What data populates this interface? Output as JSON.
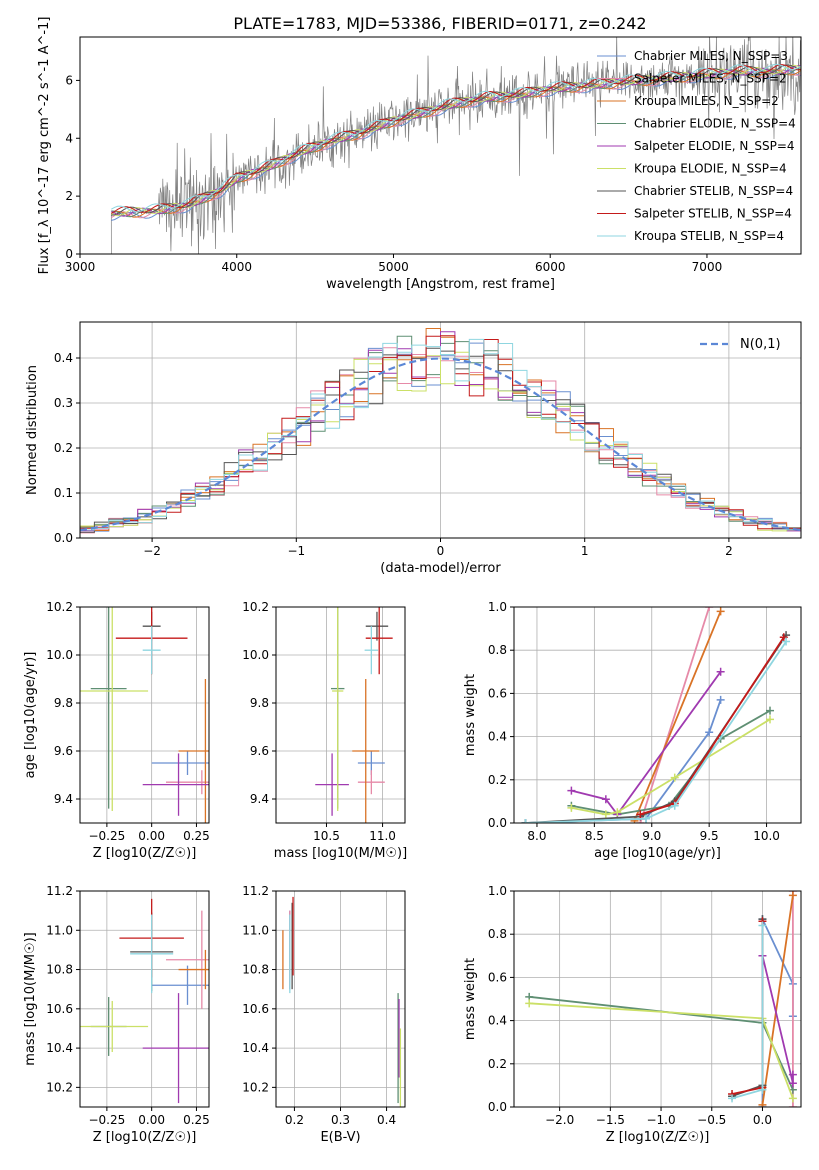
{
  "figure_title": "PLATE=1783, MJD=53386, FIBERID=0171, z=0.242",
  "models": [
    {
      "name": "Chabrier MILES, N_SSP=3",
      "color": "#6a8fd0"
    },
    {
      "name": "Salpeter MILES, N_SSP=2",
      "color": "#e68aa8"
    },
    {
      "name": "Kroupa MILES, N_SSP=2",
      "color": "#d97326"
    },
    {
      "name": "Chabrier ELODIE, N_SSP=4",
      "color": "#5f8f73"
    },
    {
      "name": "Salpeter ELODIE, N_SSP=4",
      "color": "#a03ab0"
    },
    {
      "name": "Kroupa ELODIE, N_SSP=4",
      "color": "#cbe067"
    },
    {
      "name": "Chabrier STELIB, N_SSP=4",
      "color": "#555555"
    },
    {
      "name": "Salpeter STELIB, N_SSP=4",
      "color": "#c41a1a"
    },
    {
      "name": "Kroupa STELIB, N_SSP=4",
      "color": "#8fd6e0"
    }
  ],
  "chart_data": [
    {
      "type": "line",
      "id": "spectrum",
      "title": "PLATE=1783, MJD=53386, FIBERID=0171, z=0.242",
      "xlabel": "wavelength [Angstrom, rest frame]",
      "ylabel": "Flux [f_λ 10^-17 erg cm^-2 s^-1 A^-1]",
      "xlim": [
        3000,
        7600
      ],
      "ylim": [
        0,
        7.5
      ],
      "xticks": [
        3000,
        4000,
        5000,
        6000,
        7000
      ],
      "yticks": [
        0,
        2,
        4,
        6
      ],
      "legend_position": "top-right",
      "data_color": "#808080",
      "model_continuum": {
        "x": [
          3200,
          3500,
          3700,
          3900,
          4000,
          4200,
          4400,
          4600,
          4800,
          5000,
          5200,
          5400,
          5600,
          5800,
          6000,
          6200,
          6400,
          6600,
          6800,
          7000,
          7200,
          7400,
          7600
        ],
        "y": [
          1.4,
          1.5,
          1.7,
          2.2,
          2.6,
          3.0,
          3.5,
          3.9,
          4.2,
          4.6,
          4.9,
          5.2,
          5.4,
          5.5,
          5.7,
          5.8,
          5.9,
          6.0,
          6.1,
          6.2,
          6.3,
          6.3,
          6.4
        ]
      }
    },
    {
      "type": "histogram",
      "id": "residuals",
      "xlabel": "(data-model)/error",
      "ylabel": "Normed distribution",
      "xlim": [
        -2.5,
        2.5
      ],
      "ylim": [
        0,
        0.48
      ],
      "xticks": [
        -2,
        -1,
        0,
        1,
        2
      ],
      "yticks": [
        0.0,
        0.1,
        0.2,
        0.3,
        0.4
      ],
      "legend": "N(0,1)",
      "legend_position": "top-right",
      "reference_curve": "normal pdf, mean 0, sd 1",
      "bin_width": 0.1
    },
    {
      "type": "errorbar",
      "id": "age_vs_Z",
      "xlabel": "Z [log10(Z/Z☉)]",
      "ylabel": "age [log10(age/yr)]",
      "xlim": [
        -0.4,
        0.32
      ],
      "ylim": [
        9.3,
        10.2
      ],
      "xticks": [
        -0.25,
        0.0,
        0.25
      ],
      "yticks": [
        9.4,
        9.6,
        9.8,
        10.0,
        10.2
      ],
      "points": [
        {
          "model": 0,
          "x": 0.2,
          "xerr": 0.2,
          "y": 9.55,
          "yerr": 0.05
        },
        {
          "model": 1,
          "x": 0.28,
          "xerr": 0.2,
          "y": 9.47,
          "yerr": 0.05
        },
        {
          "model": 2,
          "x": 0.3,
          "xerr": 0.15,
          "y": 9.6,
          "yerr": 0.3
        },
        {
          "model": 3,
          "x": -0.24,
          "xerr": 0.1,
          "y": 9.86,
          "yerr": 0.5
        },
        {
          "model": 4,
          "x": 0.15,
          "xerr": 0.2,
          "y": 9.46,
          "yerr": 0.13
        },
        {
          "model": 5,
          "x": -0.22,
          "xerr": 0.2,
          "y": 9.85,
          "yerr": 0.5
        },
        {
          "model": 6,
          "x": 0.0,
          "xerr": 0.05,
          "y": 10.12,
          "yerr": 0.06
        },
        {
          "model": 7,
          "x": 0.0,
          "xerr": 0.2,
          "y": 10.07,
          "yerr": 0.15
        },
        {
          "model": 8,
          "x": 0.0,
          "xerr": 0.05,
          "y": 10.02,
          "yerr": 0.1
        }
      ]
    },
    {
      "type": "errorbar",
      "id": "age_vs_mass",
      "xlabel": "mass [log10(M/M☉)]",
      "xlim": [
        10.05,
        11.2
      ],
      "ylim": [
        9.3,
        10.2
      ],
      "xticks": [
        10.5,
        11.0
      ],
      "yticks": [
        9.4,
        9.6,
        9.8,
        10.0,
        10.2
      ],
      "points": [
        {
          "model": 0,
          "x": 10.9,
          "xerr": 0.12,
          "y": 9.55,
          "yerr": 0.05
        },
        {
          "model": 1,
          "x": 10.9,
          "xerr": 0.12,
          "y": 9.47,
          "yerr": 0.05
        },
        {
          "model": 2,
          "x": 10.85,
          "xerr": 0.12,
          "y": 9.6,
          "yerr": 0.3
        },
        {
          "model": 3,
          "x": 10.6,
          "xerr": 0.06,
          "y": 9.86,
          "yerr": 0.5
        },
        {
          "model": 4,
          "x": 10.55,
          "xerr": 0.15,
          "y": 9.46,
          "yerr": 0.13
        },
        {
          "model": 5,
          "x": 10.6,
          "xerr": 0.05,
          "y": 9.85,
          "yerr": 0.5
        },
        {
          "model": 6,
          "x": 10.95,
          "xerr": 0.1,
          "y": 10.12,
          "yerr": 0.06
        },
        {
          "model": 7,
          "x": 10.97,
          "xerr": 0.12,
          "y": 10.07,
          "yerr": 0.15
        },
        {
          "model": 8,
          "x": 10.9,
          "xerr": 0.06,
          "y": 10.02,
          "yerr": 0.1
        }
      ]
    },
    {
      "type": "line",
      "id": "weight_vs_age",
      "xlabel": "age [log10(age/yr)]",
      "ylabel": "mass weight",
      "xlim": [
        7.8,
        10.3
      ],
      "ylim": [
        0,
        1.0
      ],
      "xticks": [
        8.0,
        8.5,
        9.0,
        9.5,
        10.0
      ],
      "yticks": [
        0.0,
        0.2,
        0.4,
        0.6,
        0.8,
        1.0
      ],
      "series": [
        {
          "model": 0,
          "x": [
            7.9,
            8.95,
            9.5,
            9.6
          ],
          "y": [
            0.0,
            0.02,
            0.42,
            0.57
          ]
        },
        {
          "model": 1,
          "x": [
            8.9,
            9.5
          ],
          "y": [
            0.0,
            1.0
          ]
        },
        {
          "model": 2,
          "x": [
            8.85,
            9.6
          ],
          "y": [
            0.01,
            0.98
          ]
        },
        {
          "model": 3,
          "x": [
            8.3,
            8.7,
            9.15,
            9.6,
            10.03
          ],
          "y": [
            0.08,
            0.04,
            0.08,
            0.39,
            0.52
          ]
        },
        {
          "model": 4,
          "x": [
            8.3,
            8.6,
            8.7,
            9.6
          ],
          "y": [
            0.15,
            0.11,
            0.04,
            0.7
          ]
        },
        {
          "model": 5,
          "x": [
            8.3,
            8.6,
            8.7,
            9.2,
            10.03
          ],
          "y": [
            0.07,
            0.04,
            0.05,
            0.21,
            0.48
          ]
        },
        {
          "model": 6,
          "x": [
            7.9,
            8.9,
            9.2,
            10.17
          ],
          "y": [
            0.0,
            0.03,
            0.1,
            0.87
          ]
        },
        {
          "model": 7,
          "x": [
            8.9,
            9.2,
            10.15
          ],
          "y": [
            0.04,
            0.09,
            0.86
          ]
        },
        {
          "model": 8,
          "x": [
            7.9,
            8.95,
            9.2,
            10.17
          ],
          "y": [
            0.0,
            0.02,
            0.08,
            0.84
          ]
        }
      ]
    },
    {
      "type": "errorbar",
      "id": "mass_vs_Z",
      "xlabel": "Z [log10(Z/Z☉)]",
      "ylabel": "mass [log10(M/M☉)]",
      "xlim": [
        -0.4,
        0.32
      ],
      "ylim": [
        10.1,
        11.2
      ],
      "xticks": [
        -0.25,
        0.0,
        0.25
      ],
      "yticks": [
        10.2,
        10.4,
        10.6,
        10.8,
        11.0,
        11.2
      ],
      "points": [
        {
          "model": 0,
          "x": 0.2,
          "xerr": 0.2,
          "y": 10.72,
          "yerr": 0.1
        },
        {
          "model": 1,
          "x": 0.28,
          "xerr": 0.2,
          "y": 10.85,
          "yerr": 0.25
        },
        {
          "model": 2,
          "x": 0.3,
          "xerr": 0.15,
          "y": 10.8,
          "yerr": 0.1
        },
        {
          "model": 3,
          "x": -0.24,
          "xerr": 0.1,
          "y": 10.51,
          "yerr": 0.15
        },
        {
          "model": 4,
          "x": 0.15,
          "xerr": 0.2,
          "y": 10.4,
          "yerr": 0.28
        },
        {
          "model": 5,
          "x": -0.22,
          "xerr": 0.2,
          "y": 10.51,
          "yerr": 0.13
        },
        {
          "model": 6,
          "x": 0.0,
          "xerr": 0.12,
          "y": 10.89,
          "yerr": 0.2
        },
        {
          "model": 7,
          "x": 0.0,
          "xerr": 0.18,
          "y": 10.96,
          "yerr": 0.2
        },
        {
          "model": 8,
          "x": 0.0,
          "xerr": 0.12,
          "y": 10.88,
          "yerr": 0.2
        }
      ]
    },
    {
      "type": "errorbar",
      "id": "mass_vs_ebv",
      "xlabel": "E(B-V)",
      "xlim": [
        0.16,
        0.44
      ],
      "ylim": [
        10.1,
        11.2
      ],
      "xticks": [
        0.2,
        0.3,
        0.4
      ],
      "yticks": [
        10.2,
        10.4,
        10.6,
        10.8,
        11.0,
        11.2
      ],
      "points": [
        {
          "model": 0,
          "x": 0.19,
          "xerr": 0,
          "y": 10.9,
          "yerr": 0.2
        },
        {
          "model": 1,
          "x": 0.19,
          "xerr": 0,
          "y": 10.9,
          "yerr": 0.2
        },
        {
          "model": 2,
          "x": 0.175,
          "xerr": 0,
          "y": 10.85,
          "yerr": 0.15
        },
        {
          "model": 3,
          "x": 0.425,
          "xerr": 0,
          "y": 10.4,
          "yerr": 0.28
        },
        {
          "model": 4,
          "x": 0.427,
          "xerr": 0,
          "y": 10.45,
          "yerr": 0.2
        },
        {
          "model": 5,
          "x": 0.43,
          "xerr": 0,
          "y": 10.3,
          "yerr": 0.2
        },
        {
          "model": 6,
          "x": 0.195,
          "xerr": 0,
          "y": 10.92,
          "yerr": 0.22
        },
        {
          "model": 7,
          "x": 0.197,
          "xerr": 0,
          "y": 10.97,
          "yerr": 0.2
        },
        {
          "model": 8,
          "x": 0.19,
          "xerr": 0,
          "y": 10.88,
          "yerr": 0.2
        }
      ]
    },
    {
      "type": "line",
      "id": "weight_vs_Z",
      "xlabel": "Z [log10(Z/Z☉)]",
      "ylabel": "mass weight",
      "xlim": [
        -2.45,
        0.38
      ],
      "ylim": [
        0,
        1.0
      ],
      "xticks": [
        -2.0,
        -1.5,
        -1.0,
        -0.5,
        0.0
      ],
      "yticks": [
        0.0,
        0.2,
        0.4,
        0.6,
        0.8,
        1.0
      ],
      "series": [
        {
          "model": 0,
          "x": [
            0.0,
            0.0,
            0.3,
            0.3
          ],
          "y": [
            0.0,
            0.87,
            0.57,
            0.42
          ]
        },
        {
          "model": 1,
          "x": [
            0.3,
            0.3
          ],
          "y": [
            0.0,
            1.0
          ]
        },
        {
          "model": 2,
          "x": [
            0.0,
            0.3
          ],
          "y": [
            0.01,
            0.98
          ]
        },
        {
          "model": 3,
          "x": [
            -2.3,
            0.0,
            0.3
          ],
          "y": [
            0.51,
            0.39,
            0.08
          ]
        },
        {
          "model": 4,
          "x": [
            0.0,
            0.3,
            0.3
          ],
          "y": [
            0.7,
            0.11,
            0.15
          ]
        },
        {
          "model": 5,
          "x": [
            -2.3,
            0.0,
            0.3
          ],
          "y": [
            0.48,
            0.41,
            0.04
          ]
        },
        {
          "model": 6,
          "x": [
            -0.3,
            0.0,
            0.0
          ],
          "y": [
            0.05,
            0.1,
            0.87
          ]
        },
        {
          "model": 7,
          "x": [
            -0.3,
            0.0,
            0.0
          ],
          "y": [
            0.06,
            0.09,
            0.86
          ]
        },
        {
          "model": 8,
          "x": [
            -0.3,
            0.0,
            0.0
          ],
          "y": [
            0.04,
            0.08,
            0.84
          ]
        }
      ]
    }
  ]
}
